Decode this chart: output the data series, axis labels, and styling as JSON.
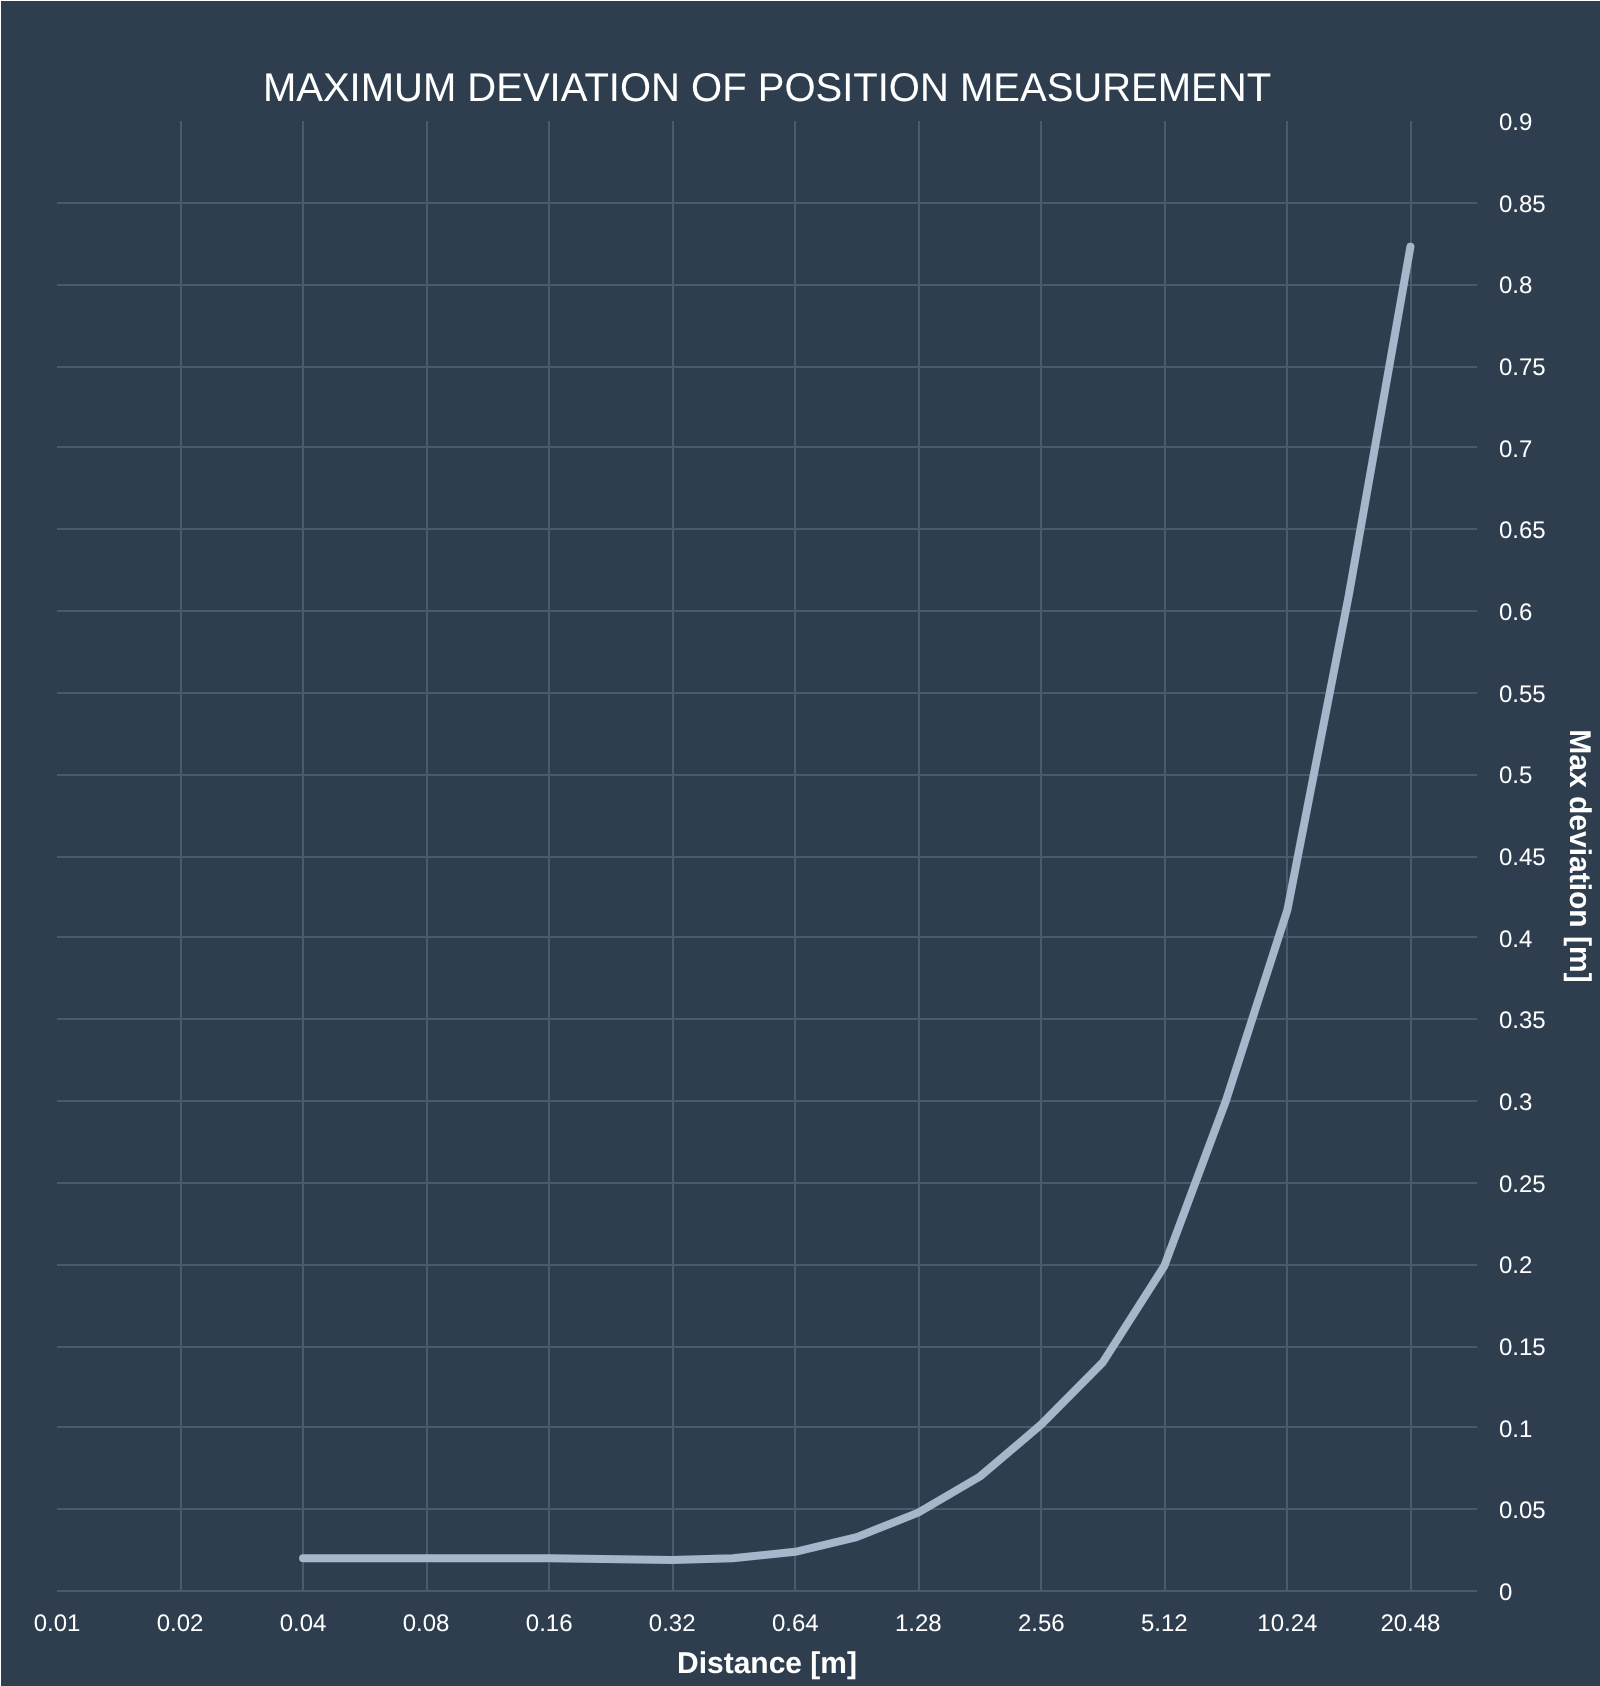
{
  "chart_data": {
    "type": "line",
    "title": "MAXIMUM DEVIATION OF POSITION MEASUREMENT",
    "xlabel": "Distance [m]",
    "ylabel": "Max deviation [m]",
    "log": "x",
    "x": [
      0.04,
      0.08,
      0.16,
      0.32,
      0.45,
      0.64,
      0.905,
      1.28,
      1.81,
      2.56,
      3.62,
      5.12,
      7.24,
      10.24,
      14.48,
      20.48
    ],
    "series": [
      {
        "color": "#a8b6cc",
        "values": [
          0.02,
          0.02,
          0.02,
          0.019,
          0.02,
          0.024,
          0.033,
          0.048,
          0.07,
          0.102,
          0.14,
          0.199,
          0.3,
          0.417,
          0.61,
          0.823
        ]
      }
    ],
    "xlim": [
      0.01,
      29.8
    ],
    "xticks": [
      0.01,
      0.02,
      0.04,
      0.08,
      0.16,
      0.32,
      0.64,
      1.28,
      2.56,
      5.12,
      10.24,
      20.48
    ],
    "ylim": [
      0,
      0.9
    ],
    "yticks": [
      0,
      0.05,
      0.1,
      0.15,
      0.2,
      0.25,
      0.3,
      0.35,
      0.4,
      0.45,
      0.5,
      0.55,
      0.6,
      0.65,
      0.7,
      0.75,
      0.8,
      0.85,
      0.9
    ],
    "grid": true,
    "marker": "none",
    "line_style": "solid"
  }
}
